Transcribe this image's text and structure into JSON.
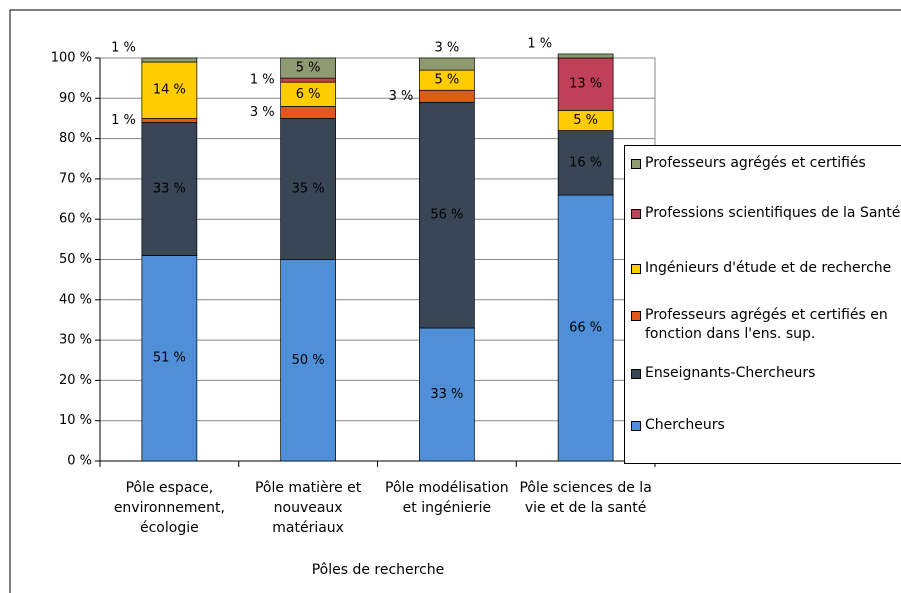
{
  "chart_data": {
    "type": "stacked_bar",
    "x_label": "Pôles de recherche",
    "categories": [
      "Pôle espace, environnement, écologie",
      "Pôle matière et nouveaux matériaux",
      "Pôle modélisation et ingénierie",
      "Pôle sciences de la vie et de la santé"
    ],
    "series": [
      {
        "name": "Chercheurs",
        "color": "#4f8fd8",
        "values": [
          51,
          50,
          33,
          66
        ],
        "value_labels": [
          "51 %",
          "50 %",
          "33 %",
          "66 %"
        ]
      },
      {
        "name": "Enseignants-Chercheurs",
        "color": "#384656",
        "values": [
          33,
          35,
          56,
          16
        ],
        "value_labels": [
          "33 %",
          "35 %",
          "56 %",
          "16 %"
        ]
      },
      {
        "name": "Professeurs agrégés et certifiés en fonction dans l'ens. sup.",
        "color": "#e0581a",
        "values": [
          1,
          3,
          3,
          null
        ],
        "value_labels": [
          "1 %",
          "3 %",
          "3 %",
          null
        ]
      },
      {
        "name": "Ingénieurs d'étude et de recherche",
        "color": "#ffcc00",
        "values": [
          14,
          6,
          5,
          5
        ],
        "value_labels": [
          "14 %",
          "6 %",
          "5 %",
          "5 %"
        ]
      },
      {
        "name": "Professions scientifiques de la Santé",
        "color": "#c0405a",
        "values": [
          null,
          1,
          null,
          13
        ],
        "value_labels": [
          null,
          "1 %",
          null,
          "13 %"
        ]
      },
      {
        "name": "Professeurs agrégés et certifiés",
        "color": "#8e9b72",
        "values": [
          1,
          5,
          3,
          1
        ],
        "value_labels": [
          "1 %",
          "5 %",
          "3 %",
          "1 %"
        ]
      }
    ],
    "ylim": [
      0,
      100
    ],
    "yticks": [
      {
        "value": 0,
        "label": "0 %"
      },
      {
        "value": 10,
        "label": "10 %"
      },
      {
        "value": 20,
        "label": "20 %"
      },
      {
        "value": 30,
        "label": "30 %"
      },
      {
        "value": 40,
        "label": "40 %"
      },
      {
        "value": 50,
        "label": "50 %"
      },
      {
        "value": 60,
        "label": "60 %"
      },
      {
        "value": 70,
        "label": "70 %"
      },
      {
        "value": 80,
        "label": "80 %"
      },
      {
        "value": 90,
        "label": "90 %"
      },
      {
        "value": 100,
        "label": "100 %"
      }
    ],
    "grid": true
  }
}
